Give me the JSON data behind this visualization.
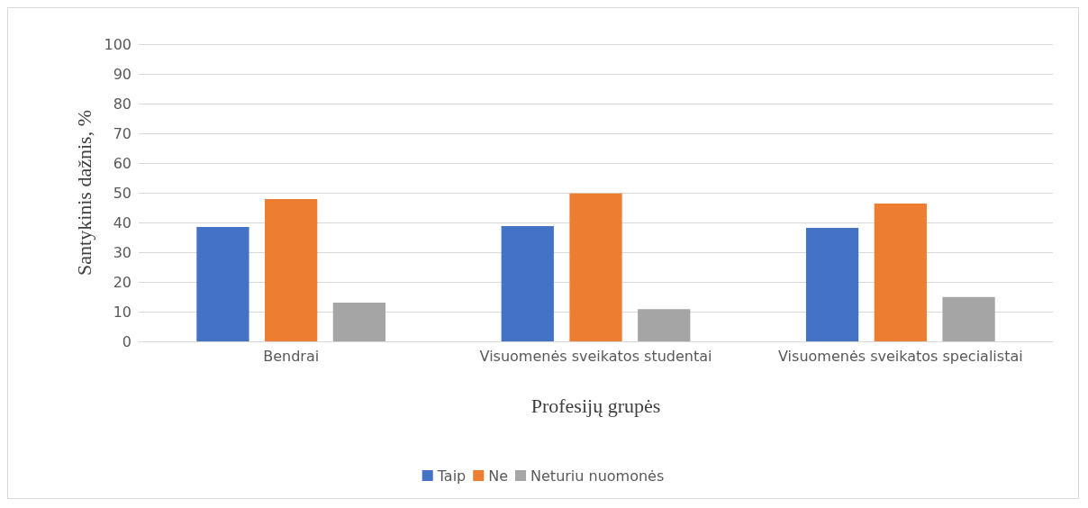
{
  "chart_data": {
    "type": "bar",
    "xlabel": "Profesijų grupės",
    "ylabel": "Santykinis dažnis, %",
    "categories": [
      "Bendrai",
      "Visuomenės sveikatos studentai",
      "Visuomenės sveikatos specialistai"
    ],
    "series": [
      {
        "name": "Taip",
        "color": "#4472c4",
        "values": [
          38.5,
          38.8,
          38.2
        ]
      },
      {
        "name": "Ne",
        "color": "#ed7d31",
        "values": [
          47.9,
          49.8,
          46.4
        ]
      },
      {
        "name": "Neturiu nuomonės",
        "color": "#a5a5a5",
        "values": [
          13.0,
          10.8,
          14.9
        ]
      }
    ],
    "ylim": [
      0,
      100
    ],
    "yticks": [
      0,
      10,
      20,
      30,
      40,
      50,
      60,
      70,
      80,
      90,
      100
    ],
    "grid": "y",
    "legend": "bottom"
  }
}
